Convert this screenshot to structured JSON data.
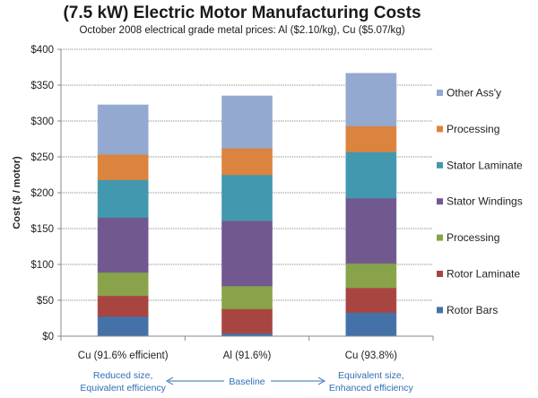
{
  "chart_data": {
    "type": "bar",
    "stacked": true,
    "title": "(7.5 kW) Electric Motor Manufacturing Costs",
    "subtitle": "October 2008  electrical grade metal prices: Al ($2.10/kg), Cu ($5.07/kg)",
    "xlabel": "",
    "ylabel": "Cost ($ / motor)",
    "ylim": [
      0,
      400
    ],
    "yticks": [
      0,
      50,
      100,
      150,
      200,
      250,
      300,
      350,
      400
    ],
    "ytick_format": "$",
    "grid": true,
    "legend_position": "right",
    "categories": [
      "Cu (91.6% efficient)",
      "Al (91.6%)",
      "Cu (93.8%)"
    ],
    "series": [
      {
        "name": "Rotor Bars",
        "color": "#4472a8",
        "values": [
          27.5,
          4,
          33
        ]
      },
      {
        "name": "Rotor Laminate",
        "color": "#a94541",
        "values": [
          29,
          34,
          34.5
        ]
      },
      {
        "name": "Processing",
        "color": "#88a34a",
        "values": [
          32.5,
          32,
          34
        ]
      },
      {
        "name": "Stator Windings",
        "color": "#71588f",
        "values": [
          76.5,
          91,
          91
        ]
      },
      {
        "name": "Stator Laminate",
        "color": "#4298ae",
        "values": [
          52.5,
          64,
          64.5
        ]
      },
      {
        "name": "Processing",
        "color": "#db843d",
        "values": [
          35.5,
          37,
          36
        ]
      },
      {
        "name": "Other Ass'y",
        "color": "#93a9cf",
        "values": [
          69,
          73,
          73.5
        ]
      }
    ],
    "totals": [
      322.5,
      335,
      366.5
    ],
    "annotations": {
      "left": [
        "Reduced size,",
        "Equivalent efficiency"
      ],
      "center": "Baseline",
      "right": [
        "Equivalent size,",
        "Enhanced efficiency"
      ],
      "color": "#2e6eb5"
    }
  }
}
